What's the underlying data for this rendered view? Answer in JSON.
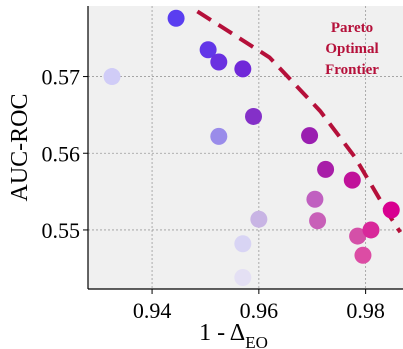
{
  "chart_data": {
    "type": "scatter",
    "xlabel": "1 - Δ",
    "xlabel_sub": "EO",
    "ylabel": "AUC-ROC",
    "xlim": [
      0.928,
      0.987
    ],
    "ylim": [
      0.5423,
      0.5792
    ],
    "xticks": [
      0.94,
      0.96,
      0.98
    ],
    "xtick_labels": [
      "0.94",
      "0.96",
      "0.98"
    ],
    "yticks": [
      0.55,
      0.56,
      0.57
    ],
    "ytick_labels": [
      "0.55",
      "0.56",
      "0.57"
    ],
    "grid": true,
    "background": "#f0f0f0",
    "annotation": {
      "lines": [
        "Pareto",
        "Optimal",
        "Frontier"
      ],
      "color": "#b5103a"
    },
    "frontier": {
      "color": "#b5103a",
      "points": [
        [
          0.9485,
          0.5785
        ],
        [
          0.962,
          0.5725
        ],
        [
          0.9715,
          0.5655
        ],
        [
          0.978,
          0.5595
        ],
        [
          0.9845,
          0.5518
        ],
        [
          0.9865,
          0.5497
        ]
      ]
    },
    "points": [
      {
        "x": 0.9445,
        "y": 0.5776,
        "color": "#5a3ef0"
      },
      {
        "x": 0.9325,
        "y": 0.57,
        "color": "#d0ccf7"
      },
      {
        "x": 0.9505,
        "y": 0.5735,
        "color": "#6236e8"
      },
      {
        "x": 0.9525,
        "y": 0.5719,
        "color": "#6a30e0"
      },
      {
        "x": 0.957,
        "y": 0.571,
        "color": "#7028d8"
      },
      {
        "x": 0.9525,
        "y": 0.5622,
        "color": "#9a8cea"
      },
      {
        "x": 0.959,
        "y": 0.5648,
        "color": "#8430c8"
      },
      {
        "x": 0.9695,
        "y": 0.5623,
        "color": "#9a1eb0"
      },
      {
        "x": 0.9725,
        "y": 0.5579,
        "color": "#a81ea8"
      },
      {
        "x": 0.9775,
        "y": 0.5565,
        "color": "#c0129a"
      },
      {
        "x": 0.9705,
        "y": 0.554,
        "color": "#c060c0"
      },
      {
        "x": 0.971,
        "y": 0.5512,
        "color": "#c860b8"
      },
      {
        "x": 0.96,
        "y": 0.5514,
        "color": "#c8b4e4"
      },
      {
        "x": 0.957,
        "y": 0.5482,
        "color": "#d8d4f4"
      },
      {
        "x": 0.957,
        "y": 0.5438,
        "color": "#e4e0f4"
      },
      {
        "x": 0.9785,
        "y": 0.5492,
        "color": "#d450a8"
      },
      {
        "x": 0.981,
        "y": 0.55,
        "color": "#d8289a"
      },
      {
        "x": 0.9795,
        "y": 0.5467,
        "color": "#dc4ca4"
      },
      {
        "x": 0.9848,
        "y": 0.5526,
        "color": "#d80090"
      }
    ]
  }
}
